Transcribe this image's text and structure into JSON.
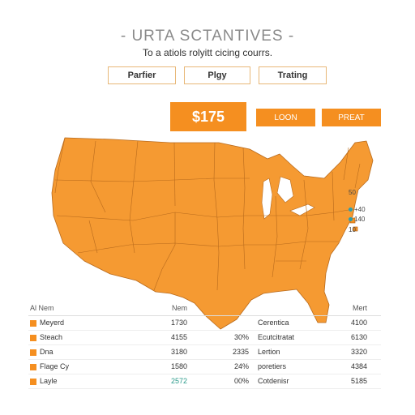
{
  "header": {
    "title": "- URTA SCTANTIVES -",
    "subtitle": "To a atiols rolyitt cicing courrs."
  },
  "tabs": [
    {
      "label": "Parfier"
    },
    {
      "label": "Plgy"
    },
    {
      "label": "Trating"
    }
  ],
  "price": {
    "value": "$175"
  },
  "actions": {
    "login": "LOON",
    "preat": "PREAT"
  },
  "map": {
    "fill_color": "#f59a32",
    "border_color": "#b86a1c"
  },
  "legend": [
    {
      "label": "50"
    },
    {
      "label": "+40"
    },
    {
      "label": "140"
    },
    {
      "label": "10"
    }
  ],
  "table": {
    "headers": {
      "name": "Al Nem",
      "num": "Nem",
      "pct": "",
      "cat": "Cerentica",
      "val": "Mert"
    },
    "rows": [
      {
        "name": "Meyerd",
        "num": "1730",
        "pct": "",
        "cat": "Cerentica",
        "val": "4100"
      },
      {
        "name": "Steach",
        "num": "4155",
        "pct": "30%",
        "cat": "Ecutcitratat",
        "val": "6130"
      },
      {
        "name": "Dna",
        "num": "3180",
        "pct": "2335",
        "cat": "Lertion",
        "val": "3320"
      },
      {
        "name": "Flage Cy",
        "num": "1580",
        "pct": "24%",
        "cat": "poretiers",
        "val": "4384"
      },
      {
        "name": "Layle",
        "num": "2572",
        "pct": "00%",
        "cat": "Cotdenisr",
        "val": "5185"
      }
    ]
  }
}
